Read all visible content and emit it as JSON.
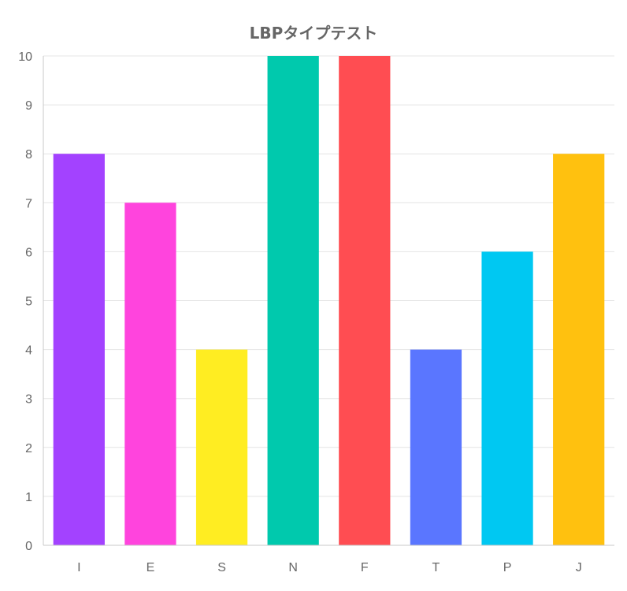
{
  "chart_data": {
    "type": "bar",
    "title": "LBPタイプテスト",
    "categories": [
      "I",
      "E",
      "S",
      "N",
      "F",
      "T",
      "P",
      "J"
    ],
    "values": [
      8,
      7,
      4,
      10,
      10,
      4,
      6,
      8
    ],
    "colors": [
      "#a342ff",
      "#ff44dd",
      "#ffed22",
      "#00c9ad",
      "#ff4d52",
      "#5a76ff",
      "#00c8f2",
      "#ffc10f"
    ],
    "ylim": [
      0,
      10
    ],
    "yticks": [
      "0",
      "1",
      "2",
      "3",
      "4",
      "5",
      "6",
      "7",
      "8",
      "9",
      "10"
    ],
    "grid": true,
    "legend": "none"
  }
}
